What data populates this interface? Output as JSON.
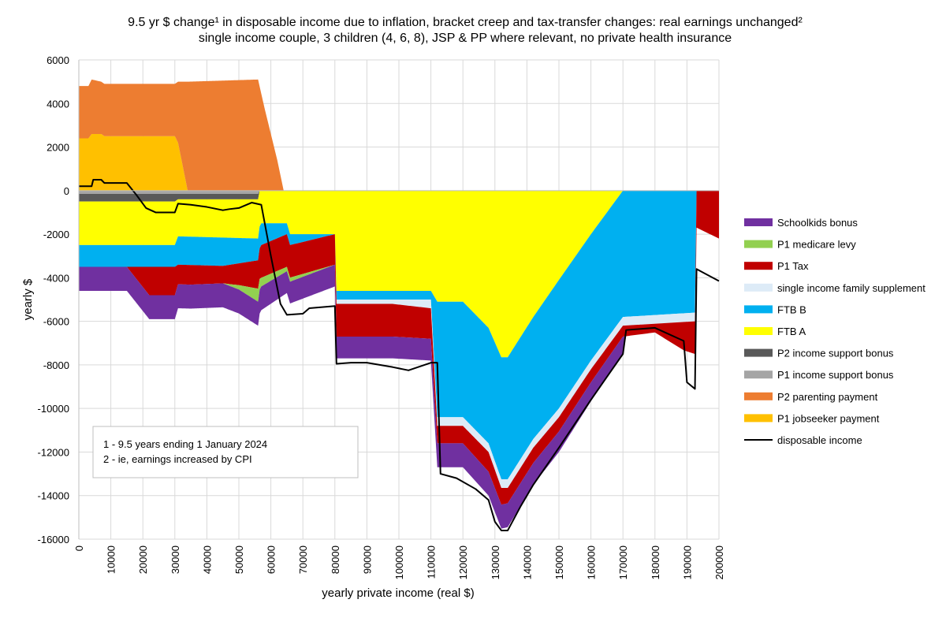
{
  "chart_data": {
    "type": "area",
    "title": "9.5 yr $ change¹ in disposable income due to inflation, bracket creep and tax-transfer changes: real earnings unchanged²",
    "subtitle": "single income couple, 3 children (4, 6, 8), JSP & PP where relevant, no private health insurance",
    "xlabel": "yearly private income (real $)",
    "ylabel": "yearly $",
    "xlim": [
      0,
      200000
    ],
    "ylim": [
      -16000,
      6000
    ],
    "x_ticks": [
      "0",
      "10000",
      "20000",
      "30000",
      "40000",
      "50000",
      "60000",
      "70000",
      "80000",
      "90000",
      "100000",
      "110000",
      "120000",
      "130000",
      "140000",
      "150000",
      "160000",
      "170000",
      "180000",
      "190000",
      "200000"
    ],
    "y_ticks": [
      "6000",
      "4000",
      "2000",
      "0",
      "-2000",
      "-4000",
      "-6000",
      "-8000",
      "-10000",
      "-12000",
      "-14000",
      "-16000"
    ],
    "grid": true,
    "legend_position": "right",
    "notes": [
      "1 - 9.5 years ending 1 January 2024",
      "2 - ie, earnings increased by CPI"
    ],
    "series": [
      {
        "name": "P1 jobseeker payment",
        "color": "#FFC000",
        "sign": "positive",
        "points": [
          [
            0,
            2400
          ],
          [
            3000,
            2400
          ],
          [
            4000,
            2600
          ],
          [
            7000,
            2600
          ],
          [
            8000,
            2500
          ],
          [
            30000,
            2500
          ],
          [
            31000,
            2200
          ],
          [
            34000,
            0
          ],
          [
            34500,
            0
          ]
        ]
      },
      {
        "name": "P2 parenting payment",
        "color": "#ED7D31",
        "sign": "positive",
        "points": [
          [
            0,
            2400
          ],
          [
            3000,
            2400
          ],
          [
            4000,
            2500
          ],
          [
            7000,
            2400
          ],
          [
            8000,
            2400
          ],
          [
            30000,
            2400
          ],
          [
            31000,
            2800
          ],
          [
            34000,
            5000
          ],
          [
            56000,
            5100
          ],
          [
            58000,
            3800
          ],
          [
            62000,
            1400
          ],
          [
            64000,
            0
          ],
          [
            65000,
            0
          ]
        ]
      },
      {
        "name": "P1 income support bonus",
        "color": "#A5A5A5",
        "sign": "negative",
        "points": [
          [
            0,
            150
          ],
          [
            56000,
            150
          ],
          [
            56500,
            0
          ]
        ]
      },
      {
        "name": "P2 income support bonus",
        "color": "#595959",
        "sign": "negative",
        "points": [
          [
            0,
            350
          ],
          [
            30000,
            350
          ],
          [
            31000,
            250
          ],
          [
            56000,
            250
          ],
          [
            56500,
            0
          ]
        ]
      },
      {
        "name": "FTB A",
        "color": "#FFFF00",
        "sign": "negative",
        "points": [
          [
            0,
            2000
          ],
          [
            30000,
            2000
          ],
          [
            31000,
            1700
          ],
          [
            56000,
            1800
          ],
          [
            57000,
            1500
          ],
          [
            65000,
            1500
          ],
          [
            66000,
            2000
          ],
          [
            80000,
            2000
          ],
          [
            80500,
            4600
          ],
          [
            110000,
            4600
          ],
          [
            112000,
            5100
          ],
          [
            120000,
            5100
          ],
          [
            128000,
            6300
          ],
          [
            132000,
            7650
          ],
          [
            134000,
            7650
          ],
          [
            142000,
            5800
          ],
          [
            150000,
            4100
          ],
          [
            160000,
            2000
          ],
          [
            170000,
            0
          ],
          [
            200000,
            0
          ]
        ]
      },
      {
        "name": "FTB B",
        "color": "#00B0F0",
        "sign": "negative",
        "points": [
          [
            0,
            1000
          ],
          [
            30000,
            1000
          ],
          [
            31000,
            1300
          ],
          [
            35000,
            1300
          ],
          [
            36000,
            1300
          ],
          [
            45000,
            1300
          ],
          [
            56000,
            1000
          ],
          [
            57000,
            1000
          ],
          [
            65000,
            500
          ],
          [
            66000,
            500
          ],
          [
            80000,
            0
          ],
          [
            80500,
            400
          ],
          [
            110000,
            400
          ],
          [
            112000,
            5300
          ],
          [
            120000,
            5300
          ],
          [
            128000,
            5300
          ],
          [
            132000,
            5600
          ],
          [
            134000,
            5600
          ],
          [
            142000,
            5600
          ],
          [
            150000,
            5900
          ],
          [
            160000,
            5800
          ],
          [
            170000,
            5800
          ],
          [
            192500,
            5600
          ],
          [
            193000,
            0
          ],
          [
            200000,
            0
          ]
        ]
      },
      {
        "name": "single income family supplement",
        "color": "#DDEBF7",
        "sign": "negative",
        "points": [
          [
            0,
            0
          ],
          [
            80000,
            0
          ],
          [
            80500,
            200
          ],
          [
            98000,
            200
          ],
          [
            110000,
            400
          ],
          [
            112000,
            400
          ],
          [
            128000,
            400
          ],
          [
            134000,
            400
          ],
          [
            142000,
            400
          ],
          [
            170000,
            400
          ],
          [
            192500,
            400
          ],
          [
            193000,
            0
          ],
          [
            200000,
            0
          ]
        ]
      },
      {
        "name": "P1 Tax",
        "color": "#C00000",
        "sign": "negative",
        "points": [
          [
            0,
            0
          ],
          [
            15000,
            0
          ],
          [
            22000,
            1300
          ],
          [
            30000,
            1300
          ],
          [
            31000,
            900
          ],
          [
            35000,
            900
          ],
          [
            45000,
            800
          ],
          [
            50000,
            1000
          ],
          [
            56000,
            1300
          ],
          [
            57000,
            1500
          ],
          [
            65000,
            1500
          ],
          [
            80000,
            1400
          ],
          [
            80500,
            1500
          ],
          [
            98000,
            1500
          ],
          [
            110000,
            1400
          ],
          [
            112000,
            800
          ],
          [
            120000,
            800
          ],
          [
            128000,
            900
          ],
          [
            134000,
            700
          ],
          [
            142000,
            700
          ],
          [
            160000,
            600
          ],
          [
            170000,
            500
          ],
          [
            180000,
            400
          ],
          [
            189000,
            1300
          ],
          [
            192500,
            1500
          ],
          [
            193000,
            1700
          ],
          [
            200000,
            2200
          ]
        ]
      },
      {
        "name": "P1 medicare levy",
        "color": "#92D050",
        "sign": "negative",
        "points": [
          [
            0,
            0
          ],
          [
            45000,
            0
          ],
          [
            50000,
            200
          ],
          [
            56000,
            600
          ],
          [
            57000,
            400
          ],
          [
            65000,
            200
          ],
          [
            80000,
            0
          ],
          [
            200000,
            0
          ]
        ]
      },
      {
        "name": "Schoolkids bonus",
        "color": "#7030A0",
        "sign": "negative",
        "points": [
          [
            0,
            1100
          ],
          [
            15000,
            1100
          ],
          [
            22000,
            1100
          ],
          [
            30000,
            1100
          ],
          [
            31000,
            1100
          ],
          [
            45000,
            1100
          ],
          [
            56000,
            1100
          ],
          [
            65000,
            1000
          ],
          [
            80000,
            1000
          ],
          [
            80500,
            1000
          ],
          [
            98000,
            1000
          ],
          [
            110000,
            1000
          ],
          [
            112000,
            1100
          ],
          [
            128000,
            1100
          ],
          [
            134000,
            1100
          ],
          [
            142000,
            1000
          ],
          [
            170000,
            800
          ],
          [
            171000,
            0
          ],
          [
            200000,
            0
          ]
        ]
      }
    ],
    "line_series": {
      "name": "disposable income",
      "color": "#000000",
      "points": [
        [
          0,
          200
        ],
        [
          4000,
          200
        ],
        [
          4500,
          500
        ],
        [
          7000,
          500
        ],
        [
          8000,
          350
        ],
        [
          15000,
          350
        ],
        [
          18000,
          -200
        ],
        [
          21000,
          -800
        ],
        [
          24000,
          -1000
        ],
        [
          30000,
          -1000
        ],
        [
          31000,
          -600
        ],
        [
          35000,
          -650
        ],
        [
          40000,
          -750
        ],
        [
          45000,
          -900
        ],
        [
          47000,
          -850
        ],
        [
          50000,
          -800
        ],
        [
          54000,
          -550
        ],
        [
          57000,
          -650
        ],
        [
          60000,
          -3000
        ],
        [
          63000,
          -5200
        ],
        [
          65000,
          -5700
        ],
        [
          70000,
          -5650
        ],
        [
          72000,
          -5400
        ],
        [
          80000,
          -5300
        ],
        [
          80500,
          -7950
        ],
        [
          85000,
          -7900
        ],
        [
          90000,
          -7900
        ],
        [
          98000,
          -8100
        ],
        [
          103000,
          -8250
        ],
        [
          110000,
          -7900
        ],
        [
          112000,
          -7900
        ],
        [
          113000,
          -13000
        ],
        [
          118000,
          -13200
        ],
        [
          124000,
          -13700
        ],
        [
          128000,
          -14200
        ],
        [
          130000,
          -15200
        ],
        [
          132000,
          -15600
        ],
        [
          134000,
          -15600
        ],
        [
          138000,
          -14500
        ],
        [
          142000,
          -13500
        ],
        [
          150000,
          -11800
        ],
        [
          160000,
          -9600
        ],
        [
          170000,
          -7500
        ],
        [
          171000,
          -6400
        ],
        [
          180000,
          -6300
        ],
        [
          189000,
          -6900
        ],
        [
          190000,
          -8800
        ],
        [
          192500,
          -9100
        ],
        [
          193000,
          -3600
        ],
        [
          200000,
          -4150
        ]
      ]
    },
    "legend": [
      "Schoolkids bonus",
      "P1 medicare levy",
      "P1 Tax",
      "single income family supplement",
      "FTB B",
      "FTB A",
      "P2 income support bonus",
      "P1 income support bonus",
      "P2 parenting payment",
      "P1 jobseeker payment",
      "disposable income"
    ]
  }
}
